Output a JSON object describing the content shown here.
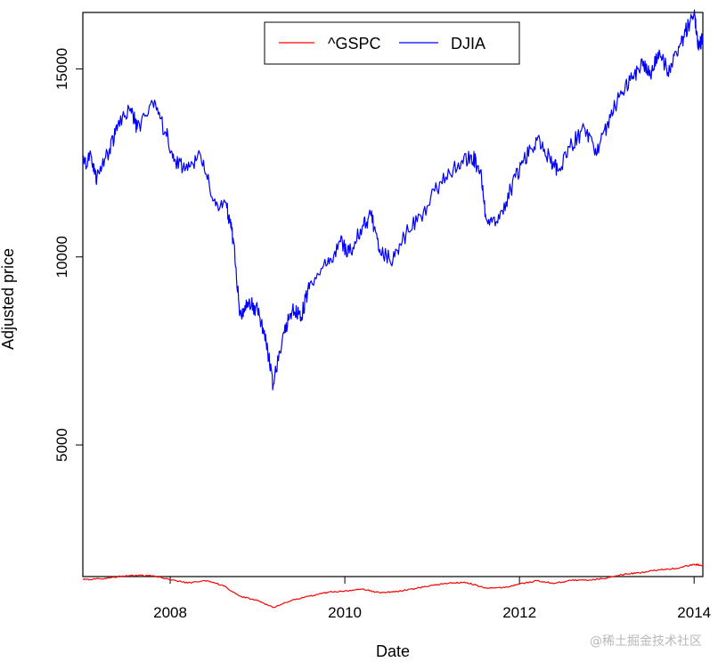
{
  "chart_data": {
    "type": "line",
    "title": "",
    "xlabel": "Date",
    "ylabel": "Adjusted price",
    "x_ticks": [
      "2008",
      "2010",
      "2012",
      "2014"
    ],
    "y_ticks": [
      "5000",
      "10000",
      "15000"
    ],
    "xlim": [
      2007.0,
      2014.1
    ],
    "ylim": [
      1500,
      16500
    ],
    "grid": false,
    "legend_position": "top-center",
    "series": [
      {
        "name": "^GSPC",
        "color": "#ff0000",
        "points": [
          [
            2007.0,
            1418
          ],
          [
            2007.2,
            1440
          ],
          [
            2007.4,
            1500
          ],
          [
            2007.6,
            1530
          ],
          [
            2007.8,
            1520
          ],
          [
            2008.0,
            1420
          ],
          [
            2008.2,
            1330
          ],
          [
            2008.4,
            1390
          ],
          [
            2008.6,
            1270
          ],
          [
            2008.8,
            980
          ],
          [
            2009.0,
            860
          ],
          [
            2009.18,
            676
          ],
          [
            2009.4,
            880
          ],
          [
            2009.6,
            980
          ],
          [
            2009.8,
            1080
          ],
          [
            2010.0,
            1120
          ],
          [
            2010.2,
            1170
          ],
          [
            2010.4,
            1070
          ],
          [
            2010.6,
            1100
          ],
          [
            2010.8,
            1180
          ],
          [
            2011.0,
            1270
          ],
          [
            2011.2,
            1330
          ],
          [
            2011.4,
            1340
          ],
          [
            2011.6,
            1200
          ],
          [
            2011.8,
            1200
          ],
          [
            2012.0,
            1300
          ],
          [
            2012.2,
            1390
          ],
          [
            2012.4,
            1320
          ],
          [
            2012.6,
            1400
          ],
          [
            2012.8,
            1410
          ],
          [
            2013.0,
            1460
          ],
          [
            2013.2,
            1560
          ],
          [
            2013.4,
            1610
          ],
          [
            2013.6,
            1680
          ],
          [
            2013.8,
            1720
          ],
          [
            2014.0,
            1830
          ],
          [
            2014.1,
            1790
          ]
        ]
      },
      {
        "name": "DJIA",
        "color": "#0000ff",
        "points": [
          [
            2007.0,
            12450
          ],
          [
            2007.1,
            12650
          ],
          [
            2007.16,
            12100
          ],
          [
            2007.3,
            12800
          ],
          [
            2007.4,
            13500
          ],
          [
            2007.55,
            13950
          ],
          [
            2007.62,
            13400
          ],
          [
            2007.8,
            14100
          ],
          [
            2007.95,
            13300
          ],
          [
            2008.05,
            12600
          ],
          [
            2008.2,
            12300
          ],
          [
            2008.35,
            12700
          ],
          [
            2008.5,
            11500
          ],
          [
            2008.65,
            11300
          ],
          [
            2008.72,
            10500
          ],
          [
            2008.8,
            8500
          ],
          [
            2008.9,
            8800
          ],
          [
            2009.0,
            8600
          ],
          [
            2009.1,
            7700
          ],
          [
            2009.18,
            6600
          ],
          [
            2009.3,
            8000
          ],
          [
            2009.4,
            8600
          ],
          [
            2009.5,
            8400
          ],
          [
            2009.6,
            9300
          ],
          [
            2009.8,
            9800
          ],
          [
            2009.95,
            10400
          ],
          [
            2010.05,
            10100
          ],
          [
            2010.2,
            10800
          ],
          [
            2010.3,
            11100
          ],
          [
            2010.4,
            10200
          ],
          [
            2010.55,
            9900
          ],
          [
            2010.7,
            10600
          ],
          [
            2010.9,
            11200
          ],
          [
            2011.1,
            12000
          ],
          [
            2011.3,
            12500
          ],
          [
            2011.45,
            12700
          ],
          [
            2011.55,
            12300
          ],
          [
            2011.62,
            11000
          ],
          [
            2011.75,
            10900
          ],
          [
            2011.9,
            11800
          ],
          [
            2012.05,
            12600
          ],
          [
            2012.2,
            13100
          ],
          [
            2012.35,
            12600
          ],
          [
            2012.45,
            12300
          ],
          [
            2012.6,
            13000
          ],
          [
            2012.75,
            13400
          ],
          [
            2012.88,
            12700
          ],
          [
            2013.0,
            13500
          ],
          [
            2013.15,
            14300
          ],
          [
            2013.3,
            14800
          ],
          [
            2013.42,
            15200
          ],
          [
            2013.5,
            14800
          ],
          [
            2013.6,
            15500
          ],
          [
            2013.7,
            14900
          ],
          [
            2013.8,
            15400
          ],
          [
            2013.9,
            16000
          ],
          [
            2014.0,
            16500
          ],
          [
            2014.05,
            15500
          ],
          [
            2014.1,
            15900
          ]
        ]
      }
    ]
  },
  "watermark": "@稀土掘金技术社区"
}
